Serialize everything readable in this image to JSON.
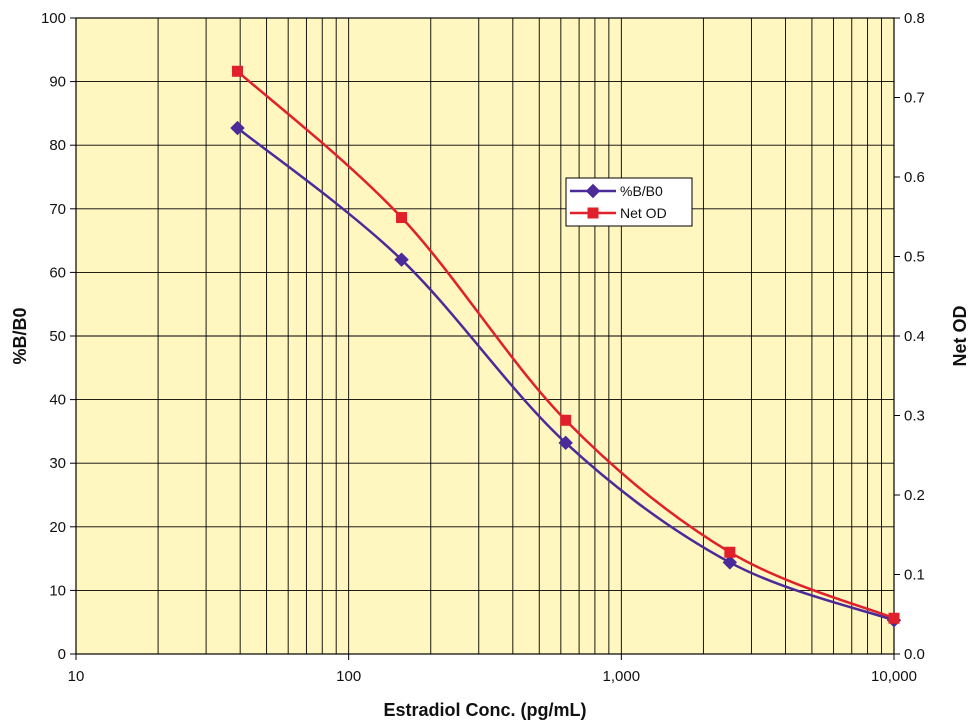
{
  "chart_data": {
    "type": "line",
    "xlabel": "Estradiol Conc. (pg/mL)",
    "ylabel": "%B/B0",
    "y2label": "Net OD",
    "xscale": "log",
    "xlim": [
      10,
      10000
    ],
    "ylim": [
      0,
      100
    ],
    "y2lim": [
      0,
      0.8
    ],
    "x_ticks": [
      10,
      100,
      1000,
      10000
    ],
    "x_tick_labels": [
      "10",
      "100",
      "1,000",
      "10,000"
    ],
    "y_ticks": [
      0,
      10,
      20,
      30,
      40,
      50,
      60,
      70,
      80,
      90,
      100
    ],
    "y2_ticks": [
      0,
      0.1,
      0.2,
      0.3,
      0.4,
      0.5,
      0.6,
      0.7,
      0.8
    ],
    "y2_tick_labels": [
      "0.0",
      "0.1",
      "0.2",
      "0.3",
      "0.4",
      "0.5",
      "0.6",
      "0.7",
      "0.8"
    ],
    "x": [
      39.1,
      156.3,
      625,
      2500,
      10000
    ],
    "series": [
      {
        "name": "%B/B0",
        "axis": "left",
        "color": "#4b2a99",
        "marker": "diamond",
        "values": [
          82.7,
          62.0,
          33.2,
          14.4,
          5.3
        ]
      },
      {
        "name": "Net OD",
        "axis": "right",
        "color": "#e0202a",
        "marker": "square",
        "values": [
          0.733,
          0.549,
          0.294,
          0.128,
          0.045
        ]
      }
    ],
    "grid": true,
    "legend_position": "center-right",
    "background_color": "#fff6c0"
  }
}
